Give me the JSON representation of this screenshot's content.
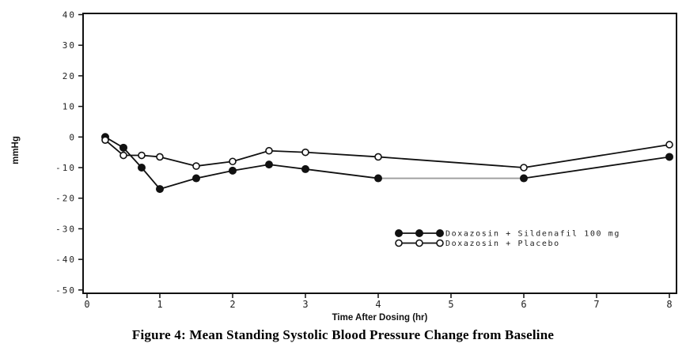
{
  "caption": "Figure 4: Mean Standing Systolic Blood Pressure Change from Baseline",
  "chart_data": {
    "type": "line",
    "title": "",
    "xlabel": "Time After Dosing (hr)",
    "ylabel": "mmHg",
    "xlim": [
      0,
      8
    ],
    "ylim": [
      -50,
      40
    ],
    "x_ticks": [
      0,
      1,
      2,
      3,
      4,
      5,
      6,
      7,
      8
    ],
    "y_ticks": [
      40,
      30,
      20,
      10,
      0,
      -10,
      -20,
      -30,
      -40,
      -50
    ],
    "grid": false,
    "legend_position": "inside-bottom-right",
    "axis_color": "#111111",
    "series": [
      {
        "name": "Doxazosin + Sildenafil 100 mg",
        "marker": "filled-circle",
        "color": "#111111",
        "x": [
          0.25,
          0.5,
          0.75,
          1,
          1.5,
          2,
          2.5,
          3,
          4,
          6,
          8
        ],
        "y": [
          0,
          -3.5,
          -10,
          -17,
          -13.5,
          -11,
          -9,
          -10.5,
          -13.5,
          -13.5,
          -6.5
        ],
        "faded_segment_index": 8,
        "faded_color": "#9c9c9c"
      },
      {
        "name": "Doxazosin + Placebo",
        "marker": "open-circle",
        "color": "#111111",
        "x": [
          0.25,
          0.5,
          0.75,
          1,
          1.5,
          2,
          2.5,
          3,
          4,
          6,
          8
        ],
        "y": [
          -1,
          -6,
          -6,
          -6.5,
          -9.5,
          -8,
          -4.5,
          -5,
          -6.5,
          -10,
          -2.5
        ],
        "faded_segment_index": -1,
        "faded_color": "#9c9c9c"
      }
    ]
  }
}
